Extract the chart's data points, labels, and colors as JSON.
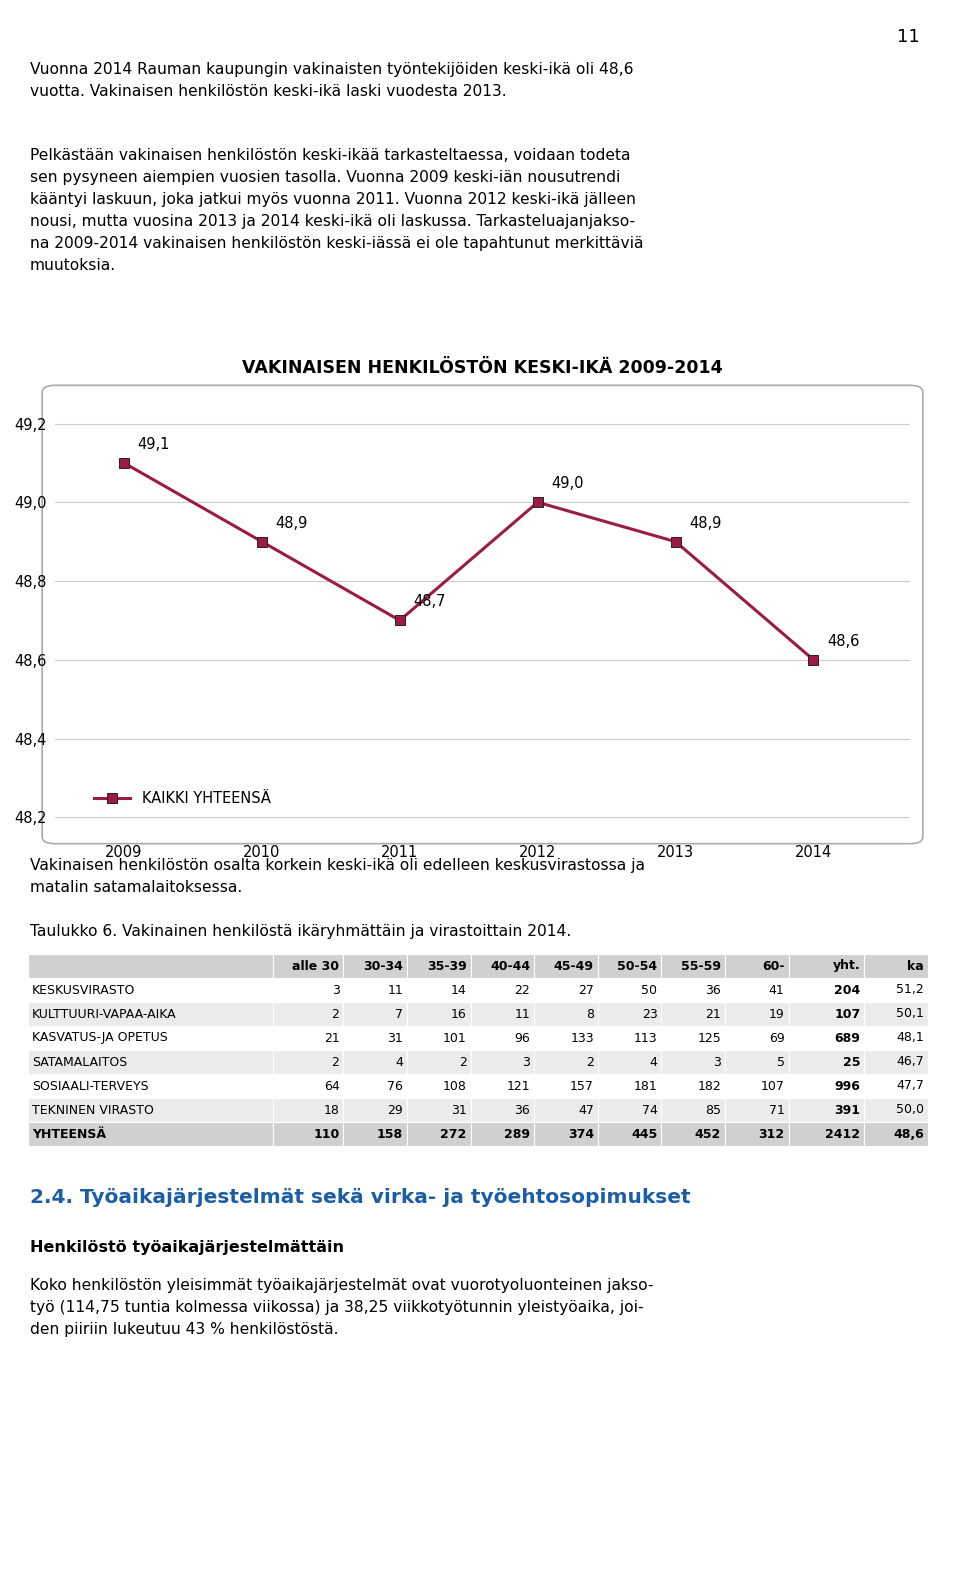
{
  "page_number": "11",
  "para1_lines": [
    "Vuonna 2014 Rauman kaupungin vakinaisten työntekijöiden keski-ikä oli 48,6",
    "vuotta. Vakinaisen henkilöstön keski-ikä laski vuodesta 2013."
  ],
  "para2_lines": [
    "Pelkästään vakinaisen henkilöstön keski-ikää tarkasteltaessa, voidaan todeta",
    "sen pysyneen aiempien vuosien tasolla. Vuonna 2009 keski-iän nousutrendi",
    "kääntyi laskuun, joka jatkui myös vuonna 2011. Vuonna 2012 keski-ikä jälleen",
    "nousi, mutta vuosina 2013 ja 2014 keski-ikä oli laskussa. Tarkasteluajanjakso-",
    "na 2009-2014 vakinaisen henkilöstön keski-iässä ei ole tapahtunut merkittäviä",
    "muutoksia."
  ],
  "chart_title": "VAKINAISEN HENKILÖSTÖN KESKI-IKÄ 2009-2014",
  "years": [
    2009,
    2010,
    2011,
    2012,
    2013,
    2014
  ],
  "values": [
    49.1,
    48.9,
    48.7,
    49.0,
    48.9,
    48.6
  ],
  "line_color": "#9B1B45",
  "marker_style": "s",
  "marker_size": 7,
  "legend_label": "KAIKKI YHTEENSÄ",
  "ylim": [
    48.15,
    49.28
  ],
  "yticks": [
    48.2,
    48.4,
    48.6,
    48.8,
    49.0,
    49.2
  ],
  "ytick_labels": [
    "48,2",
    "48,4",
    "48,6",
    "48,8",
    "49,0",
    "49,2"
  ],
  "data_labels": [
    "49,1",
    "48,9",
    "48,7",
    "49,0",
    "48,9",
    "48,6"
  ],
  "para3_lines": [
    "Vakinaisen henkilöstön osalta korkein keski-ikä oli edelleen keskusvirastossa ja",
    "matalin satamalaitoksessa."
  ],
  "table_caption": "Taulukko 6. Vakinainen henkilöstä ikäryhmättäin ja virastoittain 2014.",
  "table_headers": [
    "",
    "alle 30",
    "30-34",
    "35-39",
    "40-44",
    "45-49",
    "50-54",
    "55-59",
    "60-",
    "yht.",
    "ka"
  ],
  "table_rows": [
    [
      "KESKUSVIRASTO",
      "3",
      "11",
      "14",
      "22",
      "27",
      "50",
      "36",
      "41",
      "204",
      "51,2"
    ],
    [
      "KULTTUURI-VAPAA-AIKA",
      "2",
      "7",
      "16",
      "11",
      "8",
      "23",
      "21",
      "19",
      "107",
      "50,1"
    ],
    [
      "KASVATUS-JA OPETUS",
      "21",
      "31",
      "101",
      "96",
      "133",
      "113",
      "125",
      "69",
      "689",
      "48,1"
    ],
    [
      "SATAMALAITOS",
      "2",
      "4",
      "2",
      "3",
      "2",
      "4",
      "3",
      "5",
      "25",
      "46,7"
    ],
    [
      "SOSIAALI-TERVEYS",
      "64",
      "76",
      "108",
      "121",
      "157",
      "181",
      "182",
      "107",
      "996",
      "47,7"
    ],
    [
      "TEKNINEN VIRASTO",
      "18",
      "29",
      "31",
      "36",
      "47",
      "74",
      "85",
      "71",
      "391",
      "50,0"
    ],
    [
      "YHTEENSÄ",
      "110",
      "158",
      "272",
      "289",
      "374",
      "445",
      "452",
      "312",
      "2412",
      "48,6"
    ]
  ],
  "section_heading": "2.4. Työaikajärjestelmät sekä virka- ja työehtosopimukset",
  "sub_heading": "Henkilöstö työaikajärjestelmättäin",
  "para4_lines": [
    "Koko henkilöstön yleisimmät työaikajärjestelmät ovat vuorotyoluonteinen jakso-",
    "työ (114,75 tuntia kolmessa viikossa) ja 38,25 viikkotyötunnin yleistyöaika, joi-",
    "den piiriin lukeutuu 43 % henkilöstöstä."
  ],
  "bg_color": "#ffffff",
  "text_color": "#000000",
  "section_color": "#1B5EA6",
  "grid_color": "#cccccc",
  "border_color": "#aaaaaa"
}
